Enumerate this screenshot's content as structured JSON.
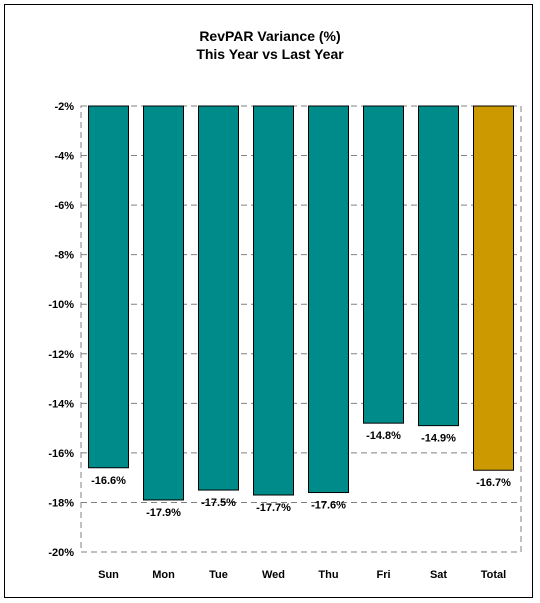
{
  "chart_data": {
    "type": "bar",
    "title_lines": [
      "RevPAR Variance (%)",
      "This Year vs Last Year"
    ],
    "categories": [
      "Sun",
      "Mon",
      "Tue",
      "Wed",
      "Thu",
      "Fri",
      "Sat",
      "Total"
    ],
    "values": [
      -16.6,
      -17.9,
      -17.5,
      -17.7,
      -17.6,
      -14.8,
      -14.9,
      -16.7
    ],
    "data_labels": [
      "-16.6%",
      "-17.9%",
      "-17.5%",
      "-17.7%",
      "-17.6%",
      "-14.8%",
      "-14.9%",
      "-16.7%"
    ],
    "y_ticks": [
      -2,
      -4,
      -6,
      -8,
      -10,
      -12,
      -14,
      -16,
      -18,
      -20
    ],
    "y_tick_labels": [
      "-2%",
      "-4%",
      "-6%",
      "-8%",
      "-10%",
      "-12%",
      "-14%",
      "-16%",
      "-18%",
      "-20%"
    ],
    "ylim": [
      -20,
      -2
    ],
    "grid": true,
    "legend": "none",
    "colors": {
      "bar": "#008B8B",
      "total_bar": "#CC9900",
      "bar_outline": "#000000",
      "grid": "#808080"
    }
  }
}
